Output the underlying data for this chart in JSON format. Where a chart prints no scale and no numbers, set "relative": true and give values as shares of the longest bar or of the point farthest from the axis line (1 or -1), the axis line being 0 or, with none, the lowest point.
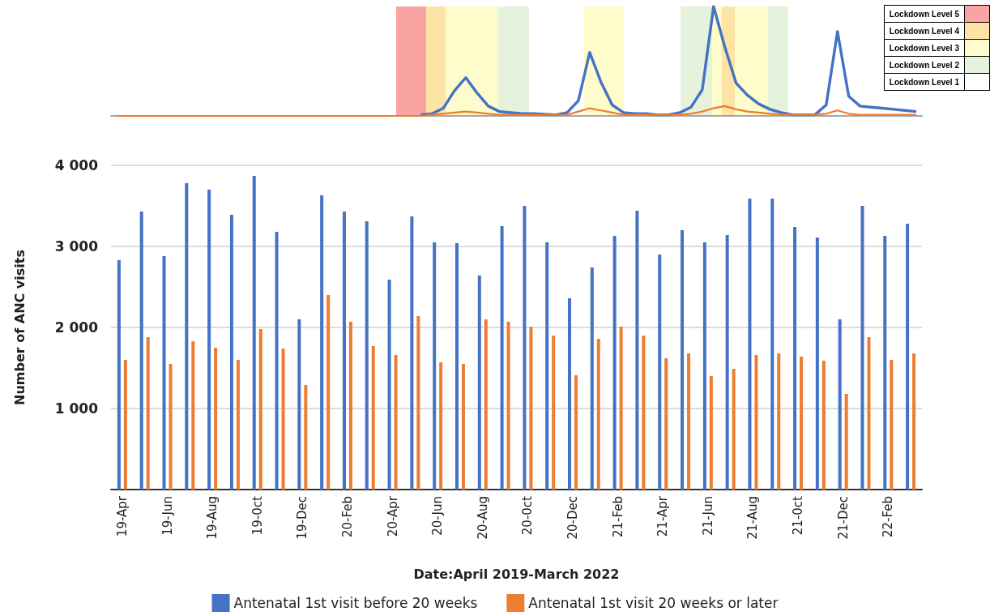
{
  "chart_data": [
    {
      "type": "line",
      "relative": true,
      "marker": "none",
      "annotations": [
        "Lockdown Level 5",
        "Lockdown Level 4",
        "Lockdown Level 3",
        "Lockdown Level 2",
        "Lockdown Level 1"
      ],
      "categories": [
        null,
        null,
        null,
        null,
        null,
        null,
        null,
        null,
        null,
        null,
        null,
        null,
        null,
        null,
        null,
        null,
        null,
        null,
        null,
        null,
        null,
        null,
        null,
        null,
        null,
        null,
        null,
        null,
        null,
        null,
        null,
        null,
        null,
        null,
        null,
        null,
        null,
        null,
        null,
        null,
        null,
        null,
        null,
        null,
        null,
        null,
        null,
        null,
        null,
        null,
        null,
        null,
        null,
        null,
        null,
        null,
        null,
        null,
        null,
        null,
        null,
        null,
        null,
        null,
        null,
        null,
        null,
        null,
        null,
        null,
        null,
        null
      ],
      "series": [
        {
          "color": "#4472c4",
          "values": [
            null,
            null,
            null,
            null,
            null,
            null,
            null,
            null,
            null,
            null,
            null,
            null,
            null,
            null,
            null,
            null,
            null,
            null,
            null,
            null,
            null,
            null,
            null,
            null,
            null,
            null,
            null,
            0.01,
            0.02,
            0.07,
            0.23,
            0.35,
            0.21,
            0.09,
            0.04,
            0.03,
            0.02,
            0.02,
            0.015,
            0.01,
            0.03,
            0.14,
            0.58,
            0.31,
            0.1,
            0.03,
            0.02,
            0.02,
            0.01,
            0.01,
            0.03,
            0.08,
            0.24,
            1,
            0.63,
            0.3,
            0.19,
            0.11,
            0.06,
            0.03,
            0.01,
            0.01,
            0.01,
            0.1,
            0.77,
            0.18,
            0.09,
            0.08,
            0.07,
            0.06,
            0.05,
            0.04
          ]
        },
        {
          "color": "#ed7d31",
          "values": [
            0,
            0,
            0,
            0,
            0,
            0,
            0,
            0,
            0,
            0,
            0,
            0,
            0,
            0,
            0,
            0,
            0,
            0,
            0,
            0,
            0,
            0,
            0,
            0,
            0,
            0,
            0,
            0,
            0.01,
            0.02,
            0.03,
            0.04,
            0.03,
            0.02,
            0.01,
            0.01,
            0.01,
            0.01,
            0.01,
            0.01,
            0.01,
            0.04,
            0.07,
            0.05,
            0.03,
            0.01,
            0.01,
            0.01,
            0.01,
            0.01,
            0.01,
            0.02,
            0.04,
            0.07,
            0.09,
            0.06,
            0.04,
            0.03,
            0.02,
            0.01,
            0.01,
            0.01,
            0.01,
            0.02,
            0.05,
            0.02,
            0.01,
            0.01,
            0.01,
            0.01,
            0.01,
            0.01
          ]
        }
      ]
    },
    {
      "type": "bar",
      "xlabel": "Date:April 2019-March 2022",
      "ylabel": "Number of ANC visits",
      "categories": [
        "19-Apr",
        null,
        "19-Jun",
        null,
        "19-Aug",
        null,
        "19-0ct",
        null,
        "19-Dec",
        null,
        "20-Feb",
        null,
        "20-Apr",
        null,
        "20-Jun",
        null,
        "20-Aug",
        null,
        "20-0ct",
        null,
        "20-Dec",
        null,
        "21-Feb",
        null,
        "21-Apr",
        null,
        "21-Jun",
        null,
        "21-Aug",
        null,
        "21-0ct",
        null,
        "21-Dec",
        null,
        "22-Feb",
        null
      ],
      "series": [
        {
          "name": "Antenatal 1st visit before 20 weeks",
          "color": "#4472c4",
          "values": [
            2830,
            3430,
            2880,
            3780,
            3700,
            3390,
            3870,
            3180,
            2100,
            3630,
            3430,
            3310,
            2590,
            3370,
            3050,
            3040,
            2640,
            3250,
            3500,
            3050,
            2360,
            2740,
            3130,
            3440,
            2900,
            3200,
            3050,
            3140,
            3590,
            3590,
            3240,
            3110,
            2100,
            3500,
            3130,
            3280
          ]
        },
        {
          "name": "Antenatal 1st visit 20 weeks or later",
          "color": "#ed7d31",
          "values": [
            1600,
            1880,
            1550,
            1830,
            1750,
            1600,
            1980,
            1740,
            1290,
            2400,
            2070,
            1770,
            1660,
            2140,
            1570,
            1550,
            2100,
            2070,
            2010,
            1900,
            1410,
            1860,
            2010,
            1900,
            1620,
            1680,
            1400,
            1490,
            1660,
            1680,
            1640,
            1590,
            1180,
            1880,
            1600,
            1680
          ]
        }
      ],
      "ylim": [
        0,
        4000
      ],
      "yticks": [
        {
          "value": 0,
          "label": null
        },
        {
          "value": 1000,
          "label": "1 000"
        },
        {
          "value": 2000,
          "label": "2 000"
        },
        {
          "value": 3000,
          "label": "3 000"
        },
        {
          "value": 4000,
          "label": "4 000"
        }
      ],
      "grid": "y",
      "legend": "bottom"
    }
  ]
}
